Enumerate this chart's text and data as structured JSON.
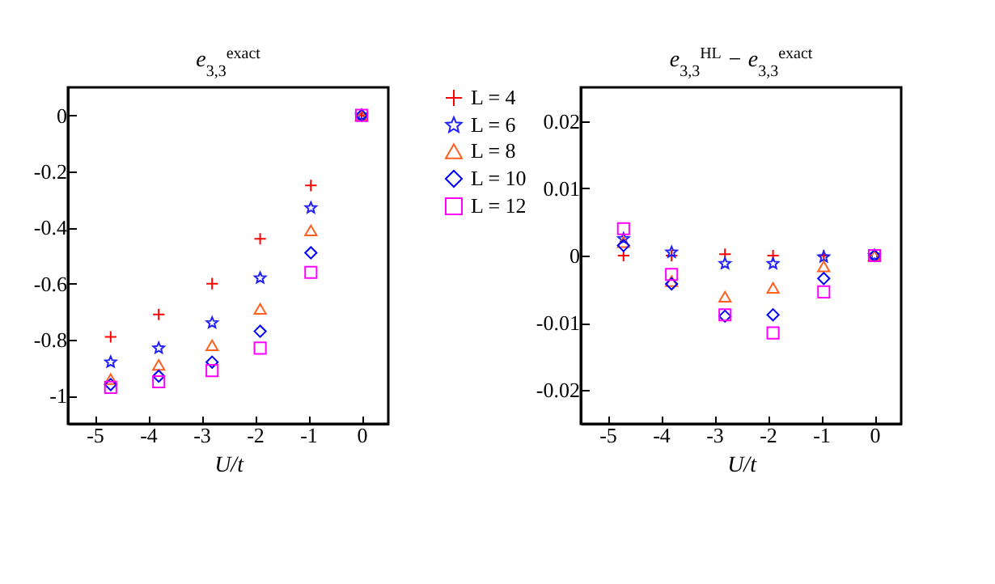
{
  "chart_data": [
    {
      "type": "scatter",
      "title": "e$_{3,3}$$^{exact}$",
      "xlabel": "U/t",
      "x": [
        -4.7,
        -3.8,
        -2.8,
        -1.9,
        -0.95,
        0
      ],
      "xlim": [
        -5.5,
        0.5
      ],
      "xticks": [
        -5,
        -4,
        -3,
        -2,
        -1,
        0
      ],
      "ylim": [
        -1.1,
        0.1
      ],
      "yticks": [
        -1,
        -0.8,
        -0.6,
        -0.4,
        -0.2,
        0
      ],
      "grid": false,
      "series": [
        {
          "color": "#ff0000",
          "marker": "cross",
          "values": [
            -0.79,
            -0.71,
            -0.6,
            -0.44,
            -0.25,
            0
          ]
        },
        {
          "color": "#2020ff",
          "marker": "star",
          "values": [
            -0.88,
            -0.83,
            -0.74,
            -0.58,
            -0.33,
            0
          ]
        },
        {
          "color": "#ff6020",
          "marker": "triangle",
          "values": [
            -0.94,
            -0.89,
            -0.82,
            -0.69,
            -0.41,
            0
          ]
        },
        {
          "color": "#0000ff",
          "marker": "diamond",
          "values": [
            -0.96,
            -0.93,
            -0.88,
            -0.77,
            -0.49,
            0
          ]
        },
        {
          "color": "#ff00ff",
          "marker": "square",
          "values": [
            -0.97,
            -0.95,
            -0.91,
            -0.83,
            -0.56,
            0
          ]
        }
      ]
    },
    {
      "type": "scatter",
      "title": "e$_{3,3}$$^{HL}$ − e$_{3,3}$$^{exact}$",
      "xlabel": "U/t",
      "x": [
        -4.7,
        -3.8,
        -2.8,
        -1.9,
        -0.95,
        0
      ],
      "xlim": [
        -5.5,
        0.5
      ],
      "xticks": [
        -5,
        -4,
        -3,
        -2,
        -1,
        0
      ],
      "ylim": [
        -0.025,
        0.025
      ],
      "yticks": [
        -0.02,
        -0.01,
        0,
        0.01,
        0.02
      ],
      "grid": false,
      "legend": "left",
      "series": [
        {
          "name": "L = 4",
          "color": "#ff0000",
          "marker": "cross",
          "values": [
            0,
            0,
            0.0002,
            0,
            0,
            null
          ]
        },
        {
          "name": "L = 6",
          "color": "#2020ff",
          "marker": "star",
          "values": [
            0.0025,
            0.0005,
            -0.0012,
            -0.0012,
            -0.0002,
            0
          ]
        },
        {
          "name": "L = 8",
          "color": "#ff6020",
          "marker": "triangle",
          "values": [
            0.002,
            -0.0038,
            -0.0061,
            -0.0048,
            -0.0016,
            0
          ]
        },
        {
          "name": "L = 10",
          "color": "#0000ff",
          "marker": "diamond",
          "values": [
            0.0015,
            -0.0042,
            -0.009,
            -0.0088,
            -0.0034,
            0
          ]
        },
        {
          "name": "L = 12",
          "color": "#ff00ff",
          "marker": "square",
          "values": [
            0.004,
            -0.0028,
            -0.0088,
            -0.0115,
            -0.0054,
            0
          ]
        }
      ]
    }
  ]
}
